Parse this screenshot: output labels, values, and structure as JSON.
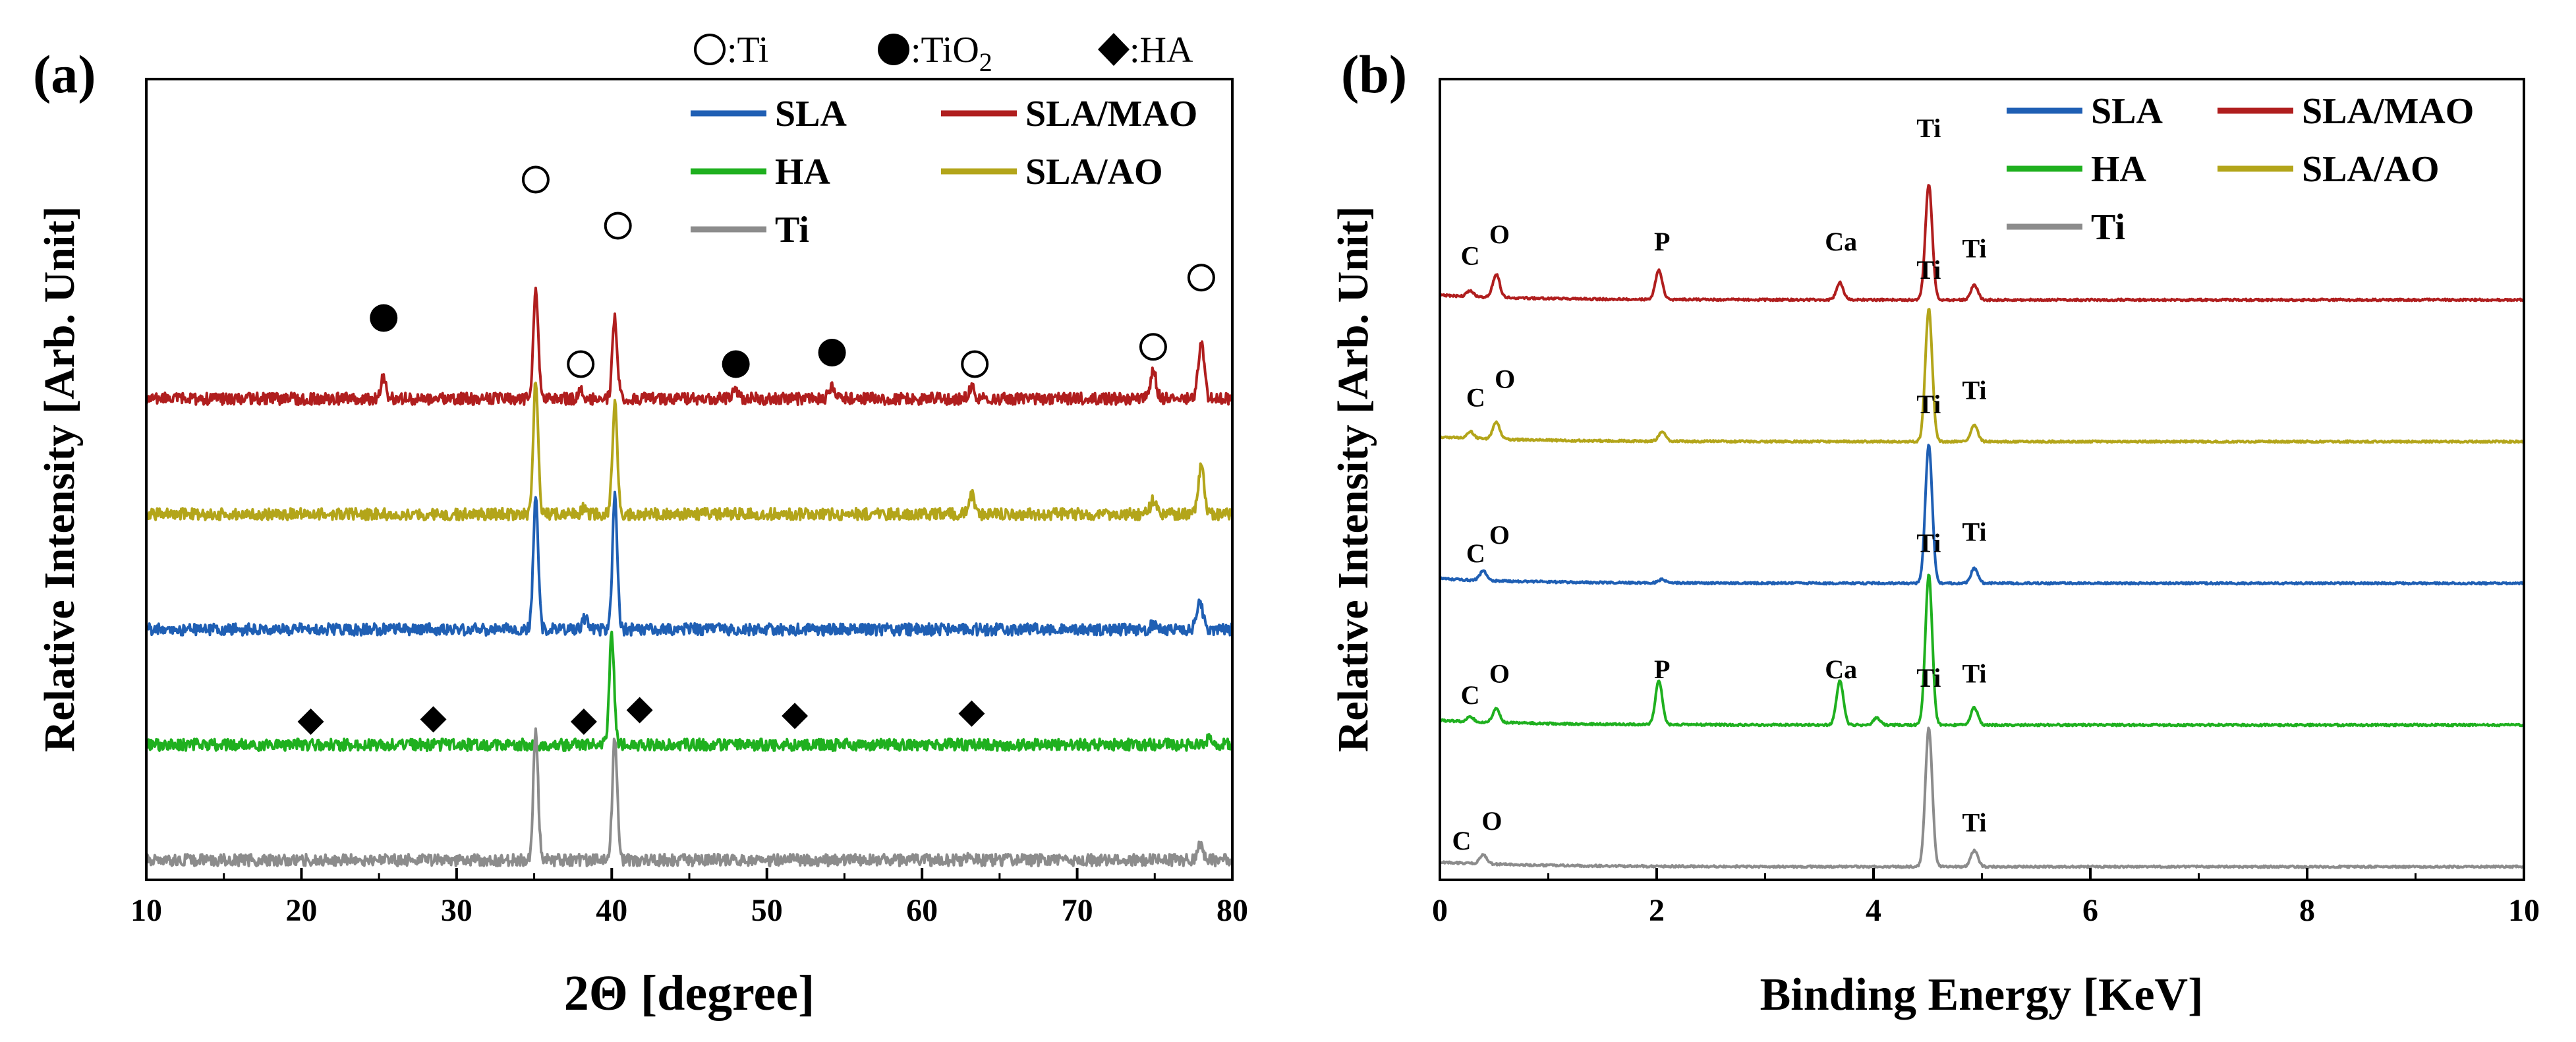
{
  "chart_data": [
    {
      "type": "line",
      "panel_label": "(a)",
      "xlabel": "2Θ [degree]",
      "ylabel": "Relative Intensity [Arb. Unit]",
      "xlim": [
        10,
        80
      ],
      "xticks": [
        10,
        20,
        30,
        40,
        50,
        60,
        70,
        80
      ],
      "symbol_legend": [
        {
          "symbol": "open-circle",
          "label": ":Ti"
        },
        {
          "symbol": "filled-circle",
          "label": ":TiO",
          "subscript": "2"
        },
        {
          "symbol": "diamond",
          "label": ":HA"
        }
      ],
      "legend": [
        {
          "name": "SLA",
          "color": "#1f5fb4"
        },
        {
          "name": "SLA/MAO",
          "color": "#b01e1e"
        },
        {
          "name": "HA",
          "color": "#1fb01f"
        },
        {
          "name": "SLA/AO",
          "color": "#b3a51a"
        },
        {
          "name": "Ti",
          "color": "#8c8c8c"
        }
      ],
      "series": [
        {
          "name": "SLA/MAO",
          "color": "#b01e1e",
          "offset": 4,
          "peaks": [
            [
              25.3,
              0.4
            ],
            [
              35.1,
              1.95
            ],
            [
              38.0,
              0.18
            ],
            [
              40.2,
              1.45
            ],
            [
              48.0,
              0.15
            ],
            [
              54.2,
              0.25
            ],
            [
              63.2,
              0.2
            ],
            [
              74.9,
              0.5
            ],
            [
              78.0,
              1.05
            ]
          ]
        },
        {
          "name": "SLA/AO",
          "color": "#b3a51a",
          "offset": 3,
          "peaks": [
            [
              35.1,
              2.35
            ],
            [
              38.2,
              0.12
            ],
            [
              40.2,
              1.95
            ],
            [
              63.2,
              0.35
            ],
            [
              74.9,
              0.25
            ],
            [
              78.0,
              0.85
            ]
          ]
        },
        {
          "name": "SLA",
          "color": "#1f5fb4",
          "offset": 2,
          "peaks": [
            [
              35.1,
              2.4
            ],
            [
              38.3,
              0.22
            ],
            [
              40.2,
              2.35
            ],
            [
              74.9,
              0.1
            ],
            [
              77.9,
              0.55
            ]
          ]
        },
        {
          "name": "HA",
          "color": "#1fb01f",
          "offset": 1,
          "peaks": [
            [
              40.0,
              2.0
            ],
            [
              78.5,
              0.1
            ]
          ]
        },
        {
          "name": "Ti",
          "color": "#8c8c8c",
          "offset": 0,
          "peaks": [
            [
              35.1,
              2.25
            ],
            [
              40.2,
              2.2
            ],
            [
              63.2,
              0.05
            ],
            [
              77.9,
              0.25
            ]
          ]
        }
      ],
      "markers": [
        {
          "symbol": "filled-circle",
          "x": 25.3,
          "level": 4.7
        },
        {
          "symbol": "open-circle",
          "x": 35.1,
          "level": 5.9
        },
        {
          "symbol": "open-circle",
          "x": 38.0,
          "level": 4.3
        },
        {
          "symbol": "open-circle",
          "x": 40.4,
          "level": 5.5
        },
        {
          "symbol": "filled-circle",
          "x": 48.0,
          "level": 4.3
        },
        {
          "symbol": "filled-circle",
          "x": 54.2,
          "level": 4.4
        },
        {
          "symbol": "open-circle",
          "x": 63.4,
          "level": 4.3
        },
        {
          "symbol": "open-circle",
          "x": 74.9,
          "level": 4.45
        },
        {
          "symbol": "open-circle",
          "x": 78.0,
          "level": 5.05
        },
        {
          "symbol": "diamond",
          "x": 20.6,
          "level": 1.2
        },
        {
          "symbol": "diamond",
          "x": 28.5,
          "level": 1.22
        },
        {
          "symbol": "diamond",
          "x": 38.2,
          "level": 1.2
        },
        {
          "symbol": "diamond",
          "x": 41.8,
          "level": 1.3
        },
        {
          "symbol": "diamond",
          "x": 51.8,
          "level": 1.25
        },
        {
          "symbol": "diamond",
          "x": 63.2,
          "level": 1.27
        }
      ]
    },
    {
      "type": "line",
      "panel_label": "(b)",
      "xlabel": "Binding Energy [KeV]",
      "ylabel": "Relative Intensity [Arb. Unit]",
      "xlim": [
        0,
        10
      ],
      "xticks": [
        0,
        2,
        4,
        6,
        8,
        10
      ],
      "legend": [
        {
          "name": "SLA",
          "color": "#1f5fb4"
        },
        {
          "name": "SLA/MAO",
          "color": "#b01e1e"
        },
        {
          "name": "HA",
          "color": "#1fb01f"
        },
        {
          "name": "SLA/AO",
          "color": "#b3a51a"
        },
        {
          "name": "Ti",
          "color": "#8c8c8c"
        }
      ],
      "series": [
        {
          "name": "SLA/MAO",
          "color": "#b01e1e",
          "offset": 4,
          "peaks": [
            [
              0.28,
              0.05
            ],
            [
              0.52,
              0.2
            ],
            [
              2.02,
              0.25
            ],
            [
              3.69,
              0.15
            ],
            [
              4.51,
              1.0
            ],
            [
              4.93,
              0.13
            ]
          ]
        },
        {
          "name": "SLA/AO",
          "color": "#b3a51a",
          "offset": 3,
          "peaks": [
            [
              0.28,
              0.06
            ],
            [
              0.52,
              0.15
            ],
            [
              2.05,
              0.08
            ],
            [
              4.51,
              1.15
            ],
            [
              4.93,
              0.14
            ]
          ]
        },
        {
          "name": "SLA",
          "color": "#1f5fb4",
          "offset": 2,
          "peaks": [
            [
              0.4,
              0.08
            ],
            [
              2.05,
              0.03
            ],
            [
              4.51,
              1.2
            ],
            [
              4.93,
              0.13
            ]
          ]
        },
        {
          "name": "HA",
          "color": "#1fb01f",
          "offset": 1,
          "peaks": [
            [
              0.28,
              0.04
            ],
            [
              0.52,
              0.12
            ],
            [
              2.02,
              0.38
            ],
            [
              3.69,
              0.38
            ],
            [
              4.03,
              0.06
            ],
            [
              4.51,
              1.3
            ],
            [
              4.93,
              0.15
            ]
          ]
        },
        {
          "name": "Ti",
          "color": "#8c8c8c",
          "offset": 0,
          "peaks": [
            [
              0.4,
              0.08
            ],
            [
              4.51,
              1.2
            ],
            [
              4.93,
              0.14
            ]
          ]
        }
      ],
      "annotations": [
        {
          "text": "C",
          "x": 0.28,
          "level": 4.25
        },
        {
          "text": "O",
          "x": 0.55,
          "level": 4.4
        },
        {
          "text": "P",
          "x": 2.05,
          "level": 4.35
        },
        {
          "text": "Ca",
          "x": 3.7,
          "level": 4.35
        },
        {
          "text": "Ti",
          "x": 4.51,
          "level": 5.15
        },
        {
          "text": "Ti",
          "x": 4.93,
          "level": 4.3
        },
        {
          "text": "C",
          "x": 0.33,
          "level": 3.25
        },
        {
          "text": "O",
          "x": 0.6,
          "level": 3.38
        },
        {
          "text": "Ti",
          "x": 4.51,
          "level": 4.15
        },
        {
          "text": "Ti",
          "x": 4.93,
          "level": 3.3
        },
        {
          "text": "C",
          "x": 0.33,
          "level": 2.15
        },
        {
          "text": "O",
          "x": 0.55,
          "level": 2.28
        },
        {
          "text": "Ti",
          "x": 4.51,
          "level": 3.2
        },
        {
          "text": "Ti",
          "x": 4.93,
          "level": 2.3
        },
        {
          "text": "C",
          "x": 0.28,
          "level": 1.15
        },
        {
          "text": "O",
          "x": 0.55,
          "level": 1.3
        },
        {
          "text": "P",
          "x": 2.05,
          "level": 1.33
        },
        {
          "text": "Ca",
          "x": 3.7,
          "level": 1.33
        },
        {
          "text": "Ti",
          "x": 4.51,
          "level": 2.22
        },
        {
          "text": "Ti",
          "x": 4.93,
          "level": 1.3
        },
        {
          "text": "C",
          "x": 0.2,
          "level": 0.12
        },
        {
          "text": "O",
          "x": 0.48,
          "level": 0.26
        },
        {
          "text": "Ti",
          "x": 4.51,
          "level": 1.27
        },
        {
          "text": "Ti",
          "x": 4.93,
          "level": 0.25
        }
      ]
    }
  ]
}
